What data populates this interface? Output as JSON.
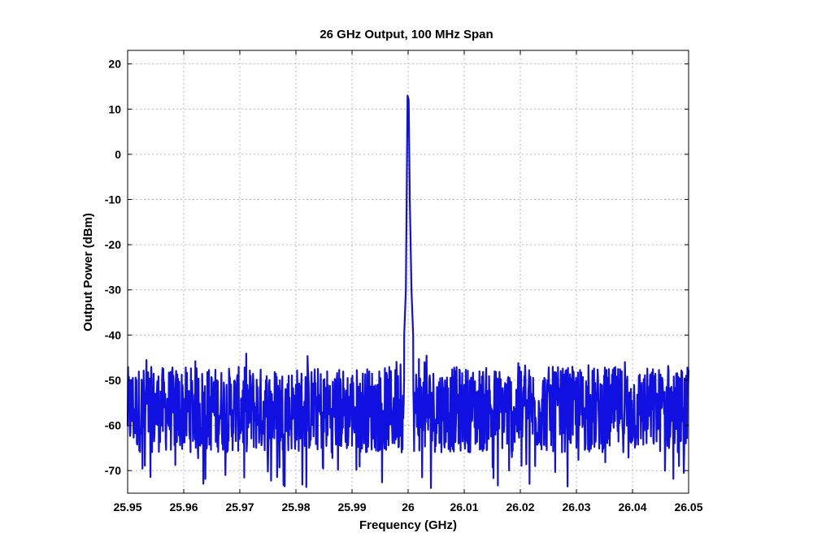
{
  "chart_data": {
    "type": "line",
    "title": "26 GHz Output, 100 MHz Span",
    "xlabel": "Frequency (GHz)",
    "ylabel": "Output Power (dBm)",
    "xlim": [
      25.95,
      26.05
    ],
    "ylim": [
      -75,
      23
    ],
    "x_ticks": [
      25.95,
      25.96,
      25.97,
      25.98,
      25.99,
      26.0,
      26.01,
      26.02,
      26.03,
      26.04,
      26.05
    ],
    "x_tick_labels": [
      "25.95",
      "25.96",
      "25.97",
      "25.98",
      "25.99",
      "26",
      "26.01",
      "26.02",
      "26.03",
      "26.04",
      "26.05"
    ],
    "y_ticks": [
      20,
      10,
      0,
      -10,
      -20,
      -30,
      -40,
      -50,
      -60,
      -70
    ],
    "y_tick_labels": [
      "20",
      "10",
      "0",
      "-10",
      "-20",
      "-30",
      "-40",
      "-50",
      "-60",
      "-70"
    ],
    "grid": true,
    "line_color": "#1010e0",
    "series": [
      {
        "noise_floor": {
          "x_start": 25.95,
          "x_end": 26.05,
          "typical_min": -66,
          "typical_max": -47,
          "extreme_min": -74,
          "extreme_max": -44
        },
        "peak": {
          "x": [
            25.9993,
            25.9996,
            25.9999,
            26.0001,
            26.0003,
            26.0006,
            26.0009
          ],
          "y": [
            -40,
            -30,
            13,
            12,
            -10,
            -30,
            -40
          ]
        }
      }
    ]
  }
}
